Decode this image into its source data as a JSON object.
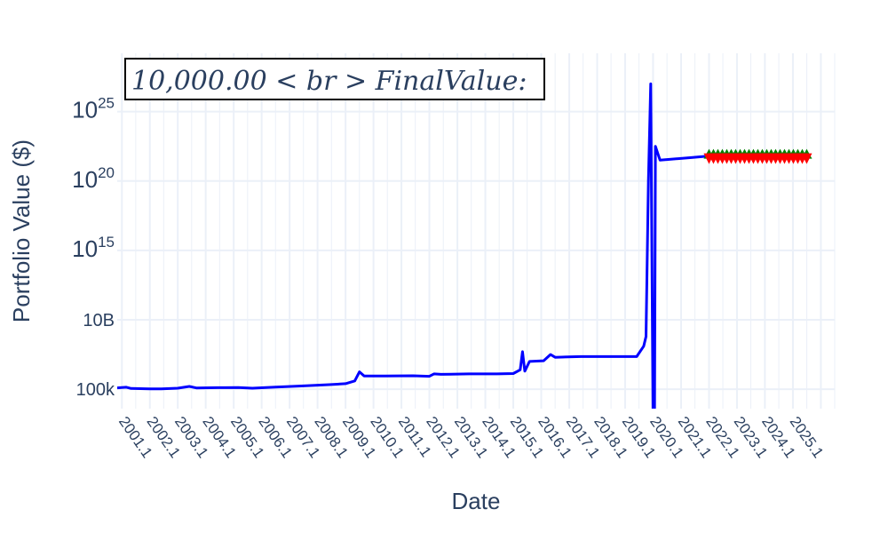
{
  "chart_data": {
    "type": "line",
    "annotation": "10,000.00<br>Final Value:",
    "xlabel": "Date",
    "ylabel": "Portfolio Value ($)",
    "y_scale": "log",
    "grid": true,
    "y_ticks": [
      {
        "exp": 5,
        "label": "100k",
        "sup": ""
      },
      {
        "exp": 10,
        "label": "10B",
        "sup": ""
      },
      {
        "exp": 15,
        "label": "10",
        "sup": "15"
      },
      {
        "exp": 20,
        "label": "10",
        "sup": "20"
      },
      {
        "exp": 25,
        "label": "10",
        "sup": "25"
      }
    ],
    "x_ticks": [
      "2001.1",
      "2002.1",
      "2003.1",
      "2004.1",
      "2005.1",
      "2006.1",
      "2007.1",
      "2008.1",
      "2009.1",
      "2010.1",
      "2011.1",
      "2012.1",
      "2013.1",
      "2014.1",
      "2015.1",
      "2016.1",
      "2017.1",
      "2018.1",
      "2019.1",
      "2020.1",
      "2021.1",
      "2022.1",
      "2023.1",
      "2024.1",
      "2025.1"
    ],
    "x_range": [
      "2000-11-01",
      "2026-07-01"
    ],
    "y_range_exp": [
      3.6,
      29.2
    ],
    "series": [
      {
        "color": "#0000ff",
        "points": [
          [
            "2000-11-01",
            5.1
          ],
          [
            "2001-03-01",
            5.14
          ],
          [
            "2001-05-01",
            5.05
          ],
          [
            "2002-01-01",
            5.03
          ],
          [
            "2002-06-01",
            5.02
          ],
          [
            "2003-01-01",
            5.07
          ],
          [
            "2003-06-01",
            5.2
          ],
          [
            "2003-09-01",
            5.09
          ],
          [
            "2004-06-01",
            5.11
          ],
          [
            "2005-03-01",
            5.12
          ],
          [
            "2005-09-01",
            5.07
          ],
          [
            "2006-06-01",
            5.14
          ],
          [
            "2007-06-01",
            5.23
          ],
          [
            "2008-06-01",
            5.33
          ],
          [
            "2009-01-01",
            5.4
          ],
          [
            "2009-05-01",
            5.6
          ],
          [
            "2009-07-01",
            6.25
          ],
          [
            "2009-09-01",
            5.95
          ],
          [
            "2010-06-01",
            5.95
          ],
          [
            "2011-06-01",
            5.97
          ],
          [
            "2012-01-01",
            5.93
          ],
          [
            "2012-03-01",
            6.1
          ],
          [
            "2012-06-01",
            6.07
          ],
          [
            "2013-06-01",
            6.1
          ],
          [
            "2014-06-01",
            6.1
          ],
          [
            "2015-01-01",
            6.13
          ],
          [
            "2015-04-01",
            6.4
          ],
          [
            "2015-05-01",
            7.7
          ],
          [
            "2015-06-01",
            6.3
          ],
          [
            "2015-08-01",
            7.0
          ],
          [
            "2016-02-01",
            7.05
          ],
          [
            "2016-05-01",
            7.5
          ],
          [
            "2016-07-01",
            7.3
          ],
          [
            "2017-06-01",
            7.35
          ],
          [
            "2018-06-01",
            7.35
          ],
          [
            "2019-06-01",
            7.35
          ],
          [
            "2019-09-01",
            8.1
          ],
          [
            "2019-10-01",
            8.8
          ],
          [
            "2019-11-01",
            20.0
          ],
          [
            "2019-12-01",
            27.0
          ],
          [
            "2020-01-01",
            3.0
          ],
          [
            "2020-01-20",
            3.0
          ],
          [
            "2020-02-01",
            22.5
          ],
          [
            "2020-04-01",
            21.5
          ],
          [
            "2021-06-01",
            21.7
          ],
          [
            "2022-01-01",
            21.8
          ]
        ]
      }
    ],
    "markers": {
      "from": "2022-01-01",
      "to": "2025-08-01",
      "buy_color": "#008000",
      "sell_color": "#ff0000",
      "y_exp": 21.8
    }
  }
}
